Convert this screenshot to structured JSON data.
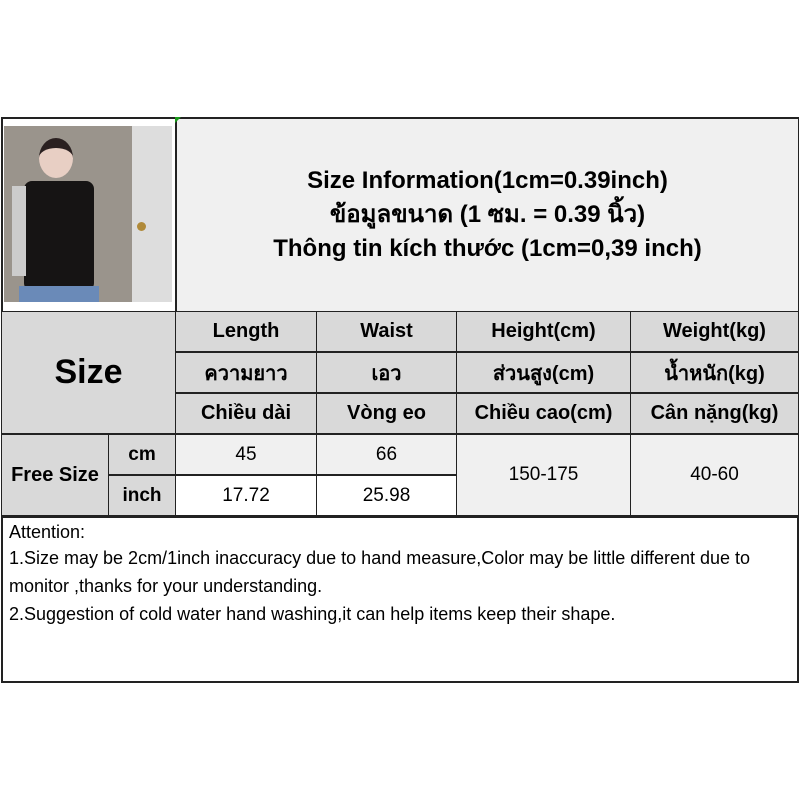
{
  "header": {
    "lines": [
      "Size Information(1cm=0.39inch)",
      "ข้อมูลขนาด (1 ซม. = 0.39 นิ้ว)",
      "Thông tin kích thước (1cm=0,39 inch)"
    ]
  },
  "table": {
    "size_label": "Size",
    "columns": [
      [
        "Length",
        "ความยาว",
        "Chiều dài"
      ],
      [
        "Waist",
        "เอว",
        "Vòng eo"
      ],
      [
        "Height(cm)",
        "ส่วนสูง(cm)",
        "Chiều cao(cm)"
      ],
      [
        "Weight(kg)",
        "น้ำหนัก(kg)",
        "Cân nặng(kg)"
      ]
    ],
    "row_label": "Free Size",
    "units": [
      "cm",
      "inch"
    ],
    "cm": [
      "45",
      "66"
    ],
    "inch": [
      "17.72",
      "25.98"
    ],
    "height": "150-175",
    "weight": "40-60"
  },
  "attention": {
    "title": "Attention:",
    "lines": [
      "1.Size may be 2cm/1inch inaccuracy due to hand measure,Color may be little different due to monitor ,thanks for your understanding.",
      "2.Suggestion of cold water hand washing,it can help items keep their shape."
    ]
  }
}
